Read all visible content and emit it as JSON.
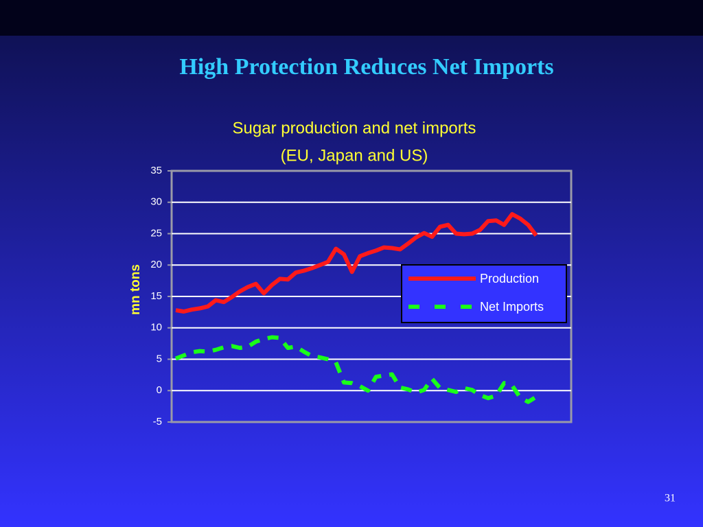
{
  "slide": {
    "title": "High Protection Reduces Net Imports",
    "page_number": "31"
  },
  "chart_data": {
    "type": "line",
    "title": "Sugar production and net imports",
    "subtitle": "(EU, Japan and US)",
    "y_label": "mn tons",
    "categories": [
      null,
      null,
      null,
      null,
      null,
      null,
      null,
      null,
      null,
      null,
      null,
      null,
      null,
      null,
      null,
      null,
      null,
      null,
      null,
      null,
      null,
      null,
      null,
      null,
      null,
      null,
      null,
      null,
      null,
      null,
      null,
      null,
      null,
      null,
      null,
      null,
      null,
      null,
      null,
      null,
      null,
      null,
      null,
      null,
      null,
      null
    ],
    "series": [
      {
        "name": "Production",
        "color": "#ff1a1a",
        "dash": false,
        "values": [
          12.8,
          12.6,
          12.9,
          13.1,
          13.4,
          14.4,
          14.1,
          14.9,
          15.8,
          16.5,
          17.0,
          15.5,
          16.8,
          17.8,
          17.7,
          18.8,
          19.1,
          19.5,
          20.0,
          20.5,
          22.6,
          21.7,
          18.9,
          21.4,
          21.9,
          22.3,
          22.8,
          22.7,
          22.5,
          23.4,
          24.4,
          25.1,
          24.5,
          26.1,
          26.4,
          25.0,
          24.9,
          25.0,
          25.6,
          27.0,
          27.1,
          26.4,
          28.1,
          27.4,
          26.4,
          24.7
        ]
      },
      {
        "name": "Net Imports",
        "color": "#1aff1a",
        "dash": true,
        "values": [
          5.1,
          5.6,
          6.1,
          6.3,
          6.2,
          6.5,
          6.9,
          7.1,
          6.8,
          7.0,
          7.8,
          8.2,
          8.5,
          8.4,
          6.8,
          7.0,
          6.2,
          5.5,
          5.3,
          5.0,
          4.5,
          1.3,
          1.2,
          0.7,
          0.0,
          2.2,
          2.4,
          2.6,
          0.5,
          0.2,
          -0.3,
          0.1,
          1.9,
          0.4,
          0.1,
          -0.2,
          0.4,
          0.1,
          -0.7,
          -1.2,
          -0.8,
          1.2,
          0.8,
          -1.1,
          -1.8,
          -1.0
        ]
      }
    ],
    "ylim": [
      -5,
      35
    ],
    "yticks": [
      -5,
      0,
      5,
      10,
      15,
      20,
      25,
      30,
      35
    ],
    "grid": true,
    "legend": "right"
  }
}
